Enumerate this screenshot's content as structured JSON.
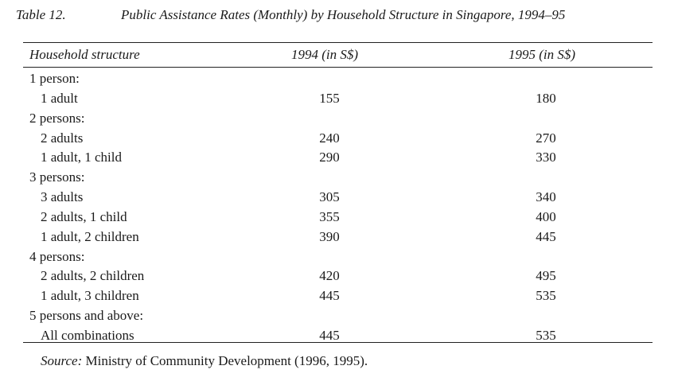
{
  "caption": {
    "number": "Table 12.",
    "title": "Public Assistance Rates (Monthly) by Household Structure in Singapore, 1994–95"
  },
  "table": {
    "headers": [
      "Household structure",
      "1994 (in S$)",
      "1995 (in S$)"
    ],
    "rows": [
      {
        "type": "group",
        "label": "1 person:",
        "v1994": "",
        "v1995": ""
      },
      {
        "type": "item",
        "label": "1 adult",
        "v1994": "155",
        "v1995": "180"
      },
      {
        "type": "group",
        "label": "2 persons:",
        "v1994": "",
        "v1995": ""
      },
      {
        "type": "item",
        "label": "2 adults",
        "v1994": "240",
        "v1995": "270"
      },
      {
        "type": "item",
        "label": "1 adult, 1 child",
        "v1994": "290",
        "v1995": "330"
      },
      {
        "type": "group",
        "label": "3 persons:",
        "v1994": "",
        "v1995": ""
      },
      {
        "type": "item",
        "label": "3 adults",
        "v1994": "305",
        "v1995": "340"
      },
      {
        "type": "item",
        "label": "2 adults, 1 child",
        "v1994": "355",
        "v1995": "400"
      },
      {
        "type": "item",
        "label": "1 adult, 2 children",
        "v1994": "390",
        "v1995": "445"
      },
      {
        "type": "group",
        "label": "4 persons:",
        "v1994": "",
        "v1995": ""
      },
      {
        "type": "item",
        "label": "2 adults, 2 children",
        "v1994": "420",
        "v1995": "495"
      },
      {
        "type": "item",
        "label": "1 adult, 3 children",
        "v1994": "445",
        "v1995": "535"
      },
      {
        "type": "group",
        "label": "5 persons and above:",
        "v1994": "",
        "v1995": ""
      },
      {
        "type": "item",
        "label": "All combinations",
        "v1994": "445",
        "v1995": "535"
      }
    ]
  },
  "source": {
    "label": "Source:",
    "text": " Ministry of Community Development (1996, 1995)."
  }
}
